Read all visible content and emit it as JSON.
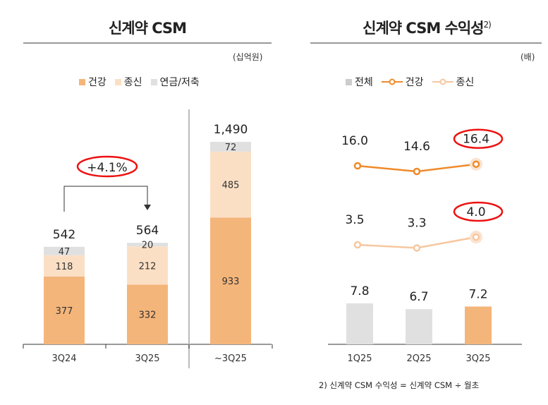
{
  "colors": {
    "health": "#f4b57a",
    "jongsin": "#fbdfc5",
    "annuity": "#e0e0e0",
    "health_line": "#ef8a2b",
    "jongsin_line": "#f7c7a0",
    "total_bar": "#e0e0e0",
    "highlight": "#e11"
  },
  "chart_data": [
    {
      "type": "bar",
      "stacked": true,
      "title": "신계약 CSM",
      "unit": "(십억원)",
      "legend": [
        "건강",
        "종신",
        "연금/저축"
      ],
      "categories": [
        "3Q24",
        "3Q25",
        "~3Q25"
      ],
      "series": [
        {
          "name": "건강",
          "values": [
            377,
            332,
            933
          ]
        },
        {
          "name": "종신",
          "values": [
            118,
            212,
            485
          ]
        },
        {
          "name": "연금/저축",
          "values": [
            47,
            20,
            72
          ]
        }
      ],
      "totals": [
        "542",
        "564",
        "1,490"
      ],
      "annotation": "+4.1%"
    },
    {
      "type": "line",
      "title": "신계약 CSM 수익성",
      "title_sup": "2)",
      "unit": "(배)",
      "legend": [
        "전체",
        "건강",
        "종신"
      ],
      "categories": [
        "1Q25",
        "2Q25",
        "3Q25"
      ],
      "bars": {
        "name": "전체",
        "values": [
          7.8,
          6.7,
          7.2
        ]
      },
      "series": [
        {
          "name": "건강",
          "values": [
            16.0,
            14.6,
            16.4
          ]
        },
        {
          "name": "종신",
          "values": [
            3.5,
            3.3,
            4.0
          ]
        }
      ],
      "footnote": "2) 신계약 CSM 수익성 = 신계약 CSM ÷ 월초"
    }
  ]
}
